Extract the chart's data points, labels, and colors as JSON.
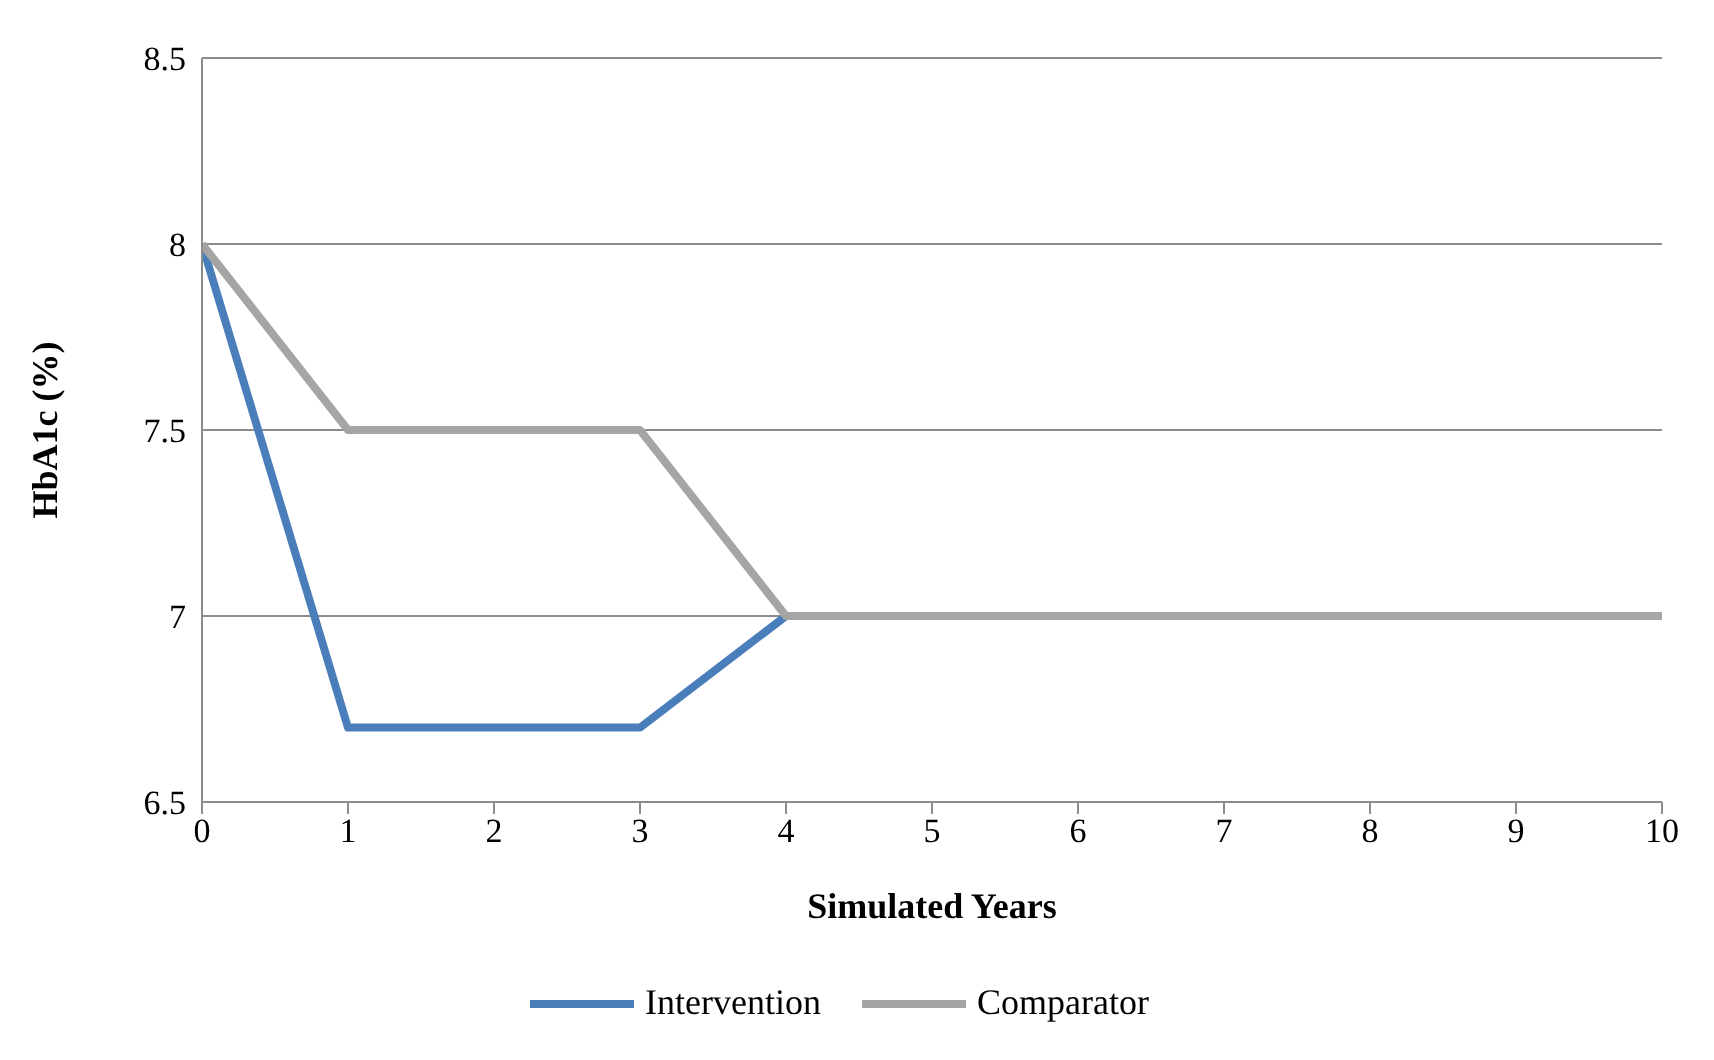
{
  "chart_data": {
    "type": "line",
    "xlabel": "Simulated Years",
    "ylabel": "HbA1c (%)",
    "x": [
      0,
      1,
      2,
      3,
      4,
      5,
      6,
      7,
      8,
      9,
      10
    ],
    "series": [
      {
        "name": "Intervention",
        "color": "#4a7ebb",
        "values": [
          8,
          6.7,
          6.7,
          6.7,
          7,
          null,
          null,
          null,
          null,
          null,
          null
        ]
      },
      {
        "name": "Comparator",
        "color": "#a5a5a5",
        "values": [
          8,
          7.5,
          7.5,
          7.5,
          7,
          7,
          7,
          7,
          7,
          7,
          7
        ]
      }
    ],
    "xlim": [
      0,
      10
    ],
    "xticks": [
      0,
      1,
      2,
      3,
      4,
      5,
      6,
      7,
      8,
      9,
      10
    ],
    "ylim": [
      6.5,
      8.5
    ],
    "yticks": [
      6.5,
      7,
      7.5,
      8,
      8.5
    ],
    "grid": "y",
    "legend": "bottom",
    "marker": "none",
    "line_style": "solid"
  }
}
